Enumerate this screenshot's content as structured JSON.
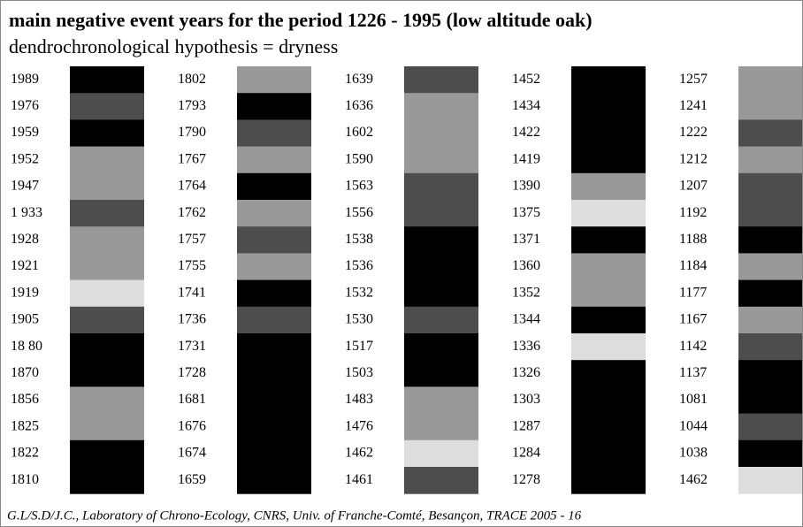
{
  "header": {
    "title": "main negative event years for the period 1226 - 1995 (low altitude oak)",
    "subtitle": "dendrochronological hypothesis = dryness"
  },
  "columns": [
    {
      "years": [
        "1989",
        "1976",
        "1959",
        "1952",
        "1947",
        "1 933",
        "1928",
        "1921",
        "1919",
        "1905",
        "18 80",
        "1870",
        "1856",
        "1825",
        "1822",
        "1810"
      ],
      "shades": [
        "#000000",
        "#4d4d4d",
        "#000000",
        "#999999",
        "#999999",
        "#4d4d4d",
        "#999999",
        "#999999",
        "#dddddd",
        "#4d4d4d",
        "#000000",
        "#000000",
        "#999999",
        "#999999",
        "#000000",
        "#000000"
      ]
    },
    {
      "years": [
        "1802",
        "1793",
        "1790",
        "1767",
        "1764",
        "1762",
        "1757",
        "1755",
        "1741",
        "1736",
        "1731",
        "1728",
        "1681",
        "1676",
        "1674",
        "1659"
      ],
      "shades": [
        "#999999",
        "#000000",
        "#4d4d4d",
        "#999999",
        "#000000",
        "#999999",
        "#4d4d4d",
        "#999999",
        "#000000",
        "#4d4d4d",
        "#000000",
        "#000000",
        "#000000",
        "#000000",
        "#000000",
        "#000000"
      ]
    },
    {
      "years": [
        "1639",
        "1636",
        "1602",
        "1590",
        "1563",
        "1556",
        "1538",
        "1536",
        "1532",
        "1530",
        "1517",
        "1503",
        "1483",
        "1476",
        "1462",
        "1461"
      ],
      "shades": [
        "#4d4d4d",
        "#999999",
        "#999999",
        "#999999",
        "#4d4d4d",
        "#4d4d4d",
        "#000000",
        "#000000",
        "#000000",
        "#4d4d4d",
        "#000000",
        "#000000",
        "#999999",
        "#999999",
        "#dddddd",
        "#4d4d4d"
      ]
    },
    {
      "years": [
        "1452",
        "1434",
        "1422",
        "1419",
        "1390",
        "1375",
        "1371",
        "1360",
        "1352",
        "1344",
        "1336",
        "1326",
        "1303",
        "1287",
        "1284",
        "1278"
      ],
      "shades": [
        "#000000",
        "#000000",
        "#000000",
        "#000000",
        "#999999",
        "#dddddd",
        "#000000",
        "#999999",
        "#999999",
        "#000000",
        "#dddddd",
        "#000000",
        "#000000",
        "#000000",
        "#000000",
        "#000000"
      ]
    },
    {
      "years": [
        "1257",
        "1241",
        "1222",
        "1212",
        "1207",
        "1192",
        "1188",
        "1184",
        "1177",
        "1167",
        "1142",
        "1137",
        "1081",
        "1044",
        "1038",
        "1462"
      ],
      "shades": [
        "#999999",
        "#999999",
        "#4d4d4d",
        "#999999",
        "#4d4d4d",
        "#4d4d4d",
        "#000000",
        "#999999",
        "#000000",
        "#999999",
        "#4d4d4d",
        "#000000",
        "#000000",
        "#4d4d4d",
        "#000000",
        "#dddddd"
      ]
    }
  ],
  "footer": "G.L/S.D/J.C., Laboratory of Chrono-Ecology, CNRS, Univ. of Franche-Comté, Besançon, TRACE 2005 - 16"
}
